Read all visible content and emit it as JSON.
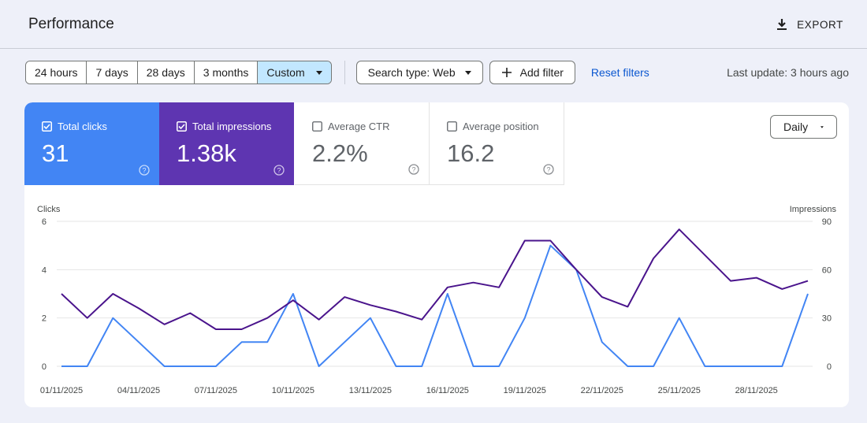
{
  "header": {
    "title": "Performance",
    "export_label": "EXPORT",
    "export_icon": "download-icon"
  },
  "toolbar": {
    "ranges": [
      "24 hours",
      "7 days",
      "28 days",
      "3 months",
      "Custom"
    ],
    "active_range": "Custom",
    "search_type": "Search type: Web",
    "add_filter": "Add filter",
    "reset_filters": "Reset filters",
    "last_update": "Last update: 3 hours ago"
  },
  "metrics": [
    {
      "label": "Total clicks",
      "value": "31",
      "checked": true,
      "color": "#4285f4"
    },
    {
      "label": "Total impressions",
      "value": "1.38k",
      "checked": true,
      "color": "#5e35b1"
    },
    {
      "label": "Average CTR",
      "value": "2.2%",
      "checked": false
    },
    {
      "label": "Average position",
      "value": "16.2",
      "checked": false
    }
  ],
  "granularity": "Daily",
  "colors": {
    "clicks": "#4285f4",
    "impressions": "#4a148c",
    "accent_link": "#0b57d0",
    "active_range_bg": "#c2e7ff"
  },
  "chart_data": {
    "type": "line",
    "left_axis_label": "Clicks",
    "right_axis_label": "Impressions",
    "left_ylim": [
      0,
      6
    ],
    "right_ylim": [
      0,
      90
    ],
    "left_ticks": [
      0,
      2,
      4,
      6
    ],
    "right_ticks": [
      0,
      30,
      60,
      90
    ],
    "x_tick_labels": [
      "01/11/2025",
      "04/11/2025",
      "07/11/2025",
      "10/11/2025",
      "13/11/2025",
      "16/11/2025",
      "19/11/2025",
      "22/11/2025",
      "25/11/2025",
      "28/11/2025"
    ],
    "x": [
      "01/11/2025",
      "02/11/2025",
      "03/11/2025",
      "04/11/2025",
      "05/11/2025",
      "06/11/2025",
      "07/11/2025",
      "08/11/2025",
      "09/11/2025",
      "10/11/2025",
      "11/11/2025",
      "12/11/2025",
      "13/11/2025",
      "14/11/2025",
      "15/11/2025",
      "16/11/2025",
      "17/11/2025",
      "18/11/2025",
      "19/11/2025",
      "20/11/2025",
      "21/11/2025",
      "22/11/2025",
      "23/11/2025",
      "24/11/2025",
      "25/11/2025",
      "26/11/2025",
      "27/11/2025",
      "28/11/2025",
      "29/11/2025",
      "30/11/2025"
    ],
    "grid": true,
    "series": [
      {
        "name": "Clicks",
        "axis": "left",
        "values": [
          0,
          0,
          2,
          1,
          0,
          0,
          0,
          1,
          1,
          3,
          0,
          1,
          2,
          0,
          0,
          3,
          0,
          0,
          2,
          5,
          4,
          1,
          0,
          0,
          2,
          0,
          0,
          0,
          0,
          3
        ]
      },
      {
        "name": "Impressions",
        "axis": "right",
        "values": [
          45,
          30,
          45,
          36,
          26,
          33,
          23,
          23,
          30,
          41,
          29,
          43,
          38,
          34,
          29,
          49,
          52,
          49,
          78,
          78,
          60,
          43,
          37,
          67,
          85,
          69,
          53,
          55,
          48,
          53
        ]
      }
    ]
  }
}
